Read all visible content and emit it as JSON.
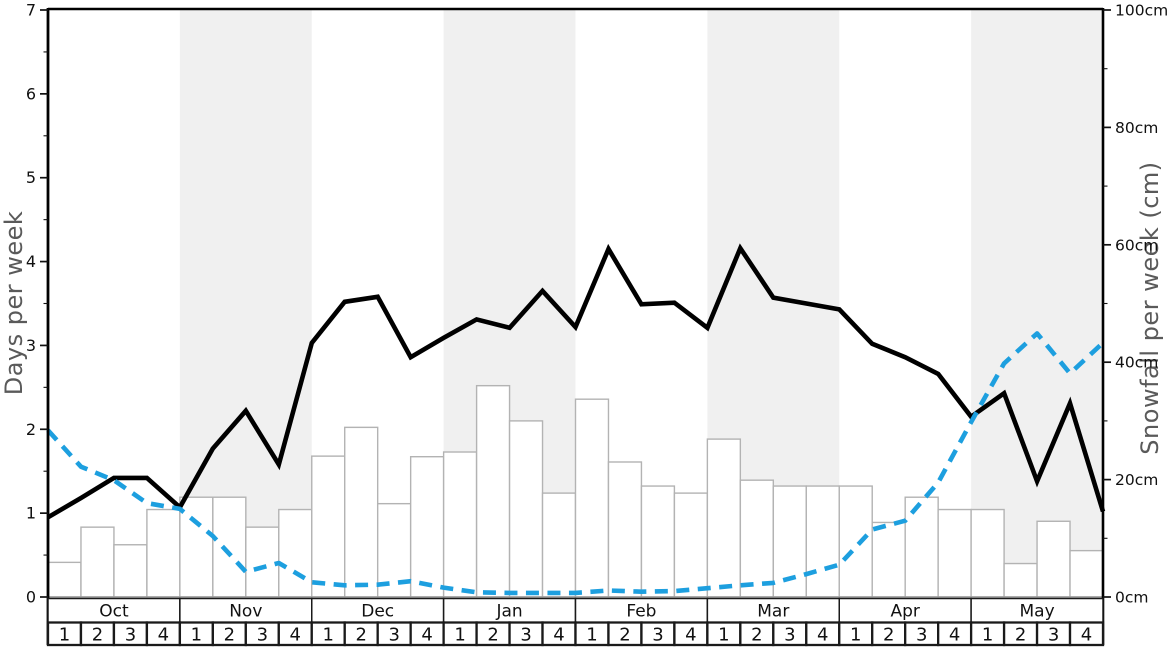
{
  "chart_data": {
    "type": "bar+line",
    "title": "",
    "left_axis": {
      "label": "Days per week",
      "range": [
        0,
        7
      ],
      "ticks": [
        "0",
        "1",
        "2",
        "3",
        "4",
        "5",
        "6",
        "7"
      ],
      "minor_tick_step": 0.5
    },
    "right_axis": {
      "label": "Snowfall per week (cm)",
      "range": [
        0,
        100
      ],
      "tick_values": [
        0,
        20,
        40,
        60,
        80,
        100
      ],
      "tick_labels": [
        "0cm",
        "20cm",
        "40cm",
        "60cm",
        "80cm",
        "100cm"
      ],
      "minor_tick_step": 10
    },
    "x": {
      "months": [
        "Oct",
        "Nov",
        "Dec",
        "Jan",
        "Feb",
        "Mar",
        "Apr",
        "May"
      ],
      "shaded_month_indices": [
        1,
        3,
        5,
        7
      ],
      "weeks_per_month": [
        "1",
        "2",
        "3",
        "4"
      ]
    },
    "series": [
      {
        "name": "snowfall-bars",
        "type": "bar",
        "axis": "right",
        "unit": "cm",
        "values": [
          5.9,
          11.9,
          8.9,
          14.9,
          17.0,
          17.0,
          11.9,
          14.9,
          24.0,
          28.9,
          15.9,
          23.9,
          24.7,
          36.0,
          30.0,
          17.7,
          33.7,
          23.0,
          18.9,
          17.7,
          26.9,
          19.9,
          18.9,
          18.9,
          18.9,
          12.7,
          17.0,
          14.9,
          14.9,
          5.7,
          12.9,
          7.9
        ]
      },
      {
        "name": "snow-days-line",
        "type": "line",
        "style": "solid",
        "axis": "left",
        "unit": "days",
        "values": [
          0.95,
          1.18,
          1.42,
          1.42,
          1.07,
          1.77,
          2.22,
          1.58,
          3.03,
          3.52,
          3.58,
          2.86,
          3.09,
          3.31,
          3.21,
          3.65,
          3.22,
          4.15,
          3.49,
          3.51,
          3.21,
          4.16,
          3.57,
          3.5,
          3.43,
          3.02,
          2.86,
          2.66,
          2.15,
          2.43,
          1.38,
          2.31,
          1.02
        ]
      },
      {
        "name": "snowfall-dashed-line",
        "type": "line",
        "style": "dashed",
        "axis": "right",
        "unit": "cm",
        "values": [
          28.4,
          22.2,
          19.9,
          16.0,
          15.0,
          10.4,
          4.3,
          5.8,
          2.5,
          2.0,
          2.1,
          2.7,
          1.6,
          0.8,
          0.7,
          0.7,
          0.7,
          1.1,
          0.9,
          1.0,
          1.5,
          2.0,
          2.4,
          3.9,
          5.5,
          11.5,
          13.0,
          19.5,
          29.8,
          39.8,
          44.9,
          38.1,
          43.3
        ]
      }
    ],
    "colors": {
      "band": "#f0f0f0",
      "bar_fill": "#ffffff",
      "bar_border": "#b3b3b3",
      "line_black": "#000000",
      "line_blue": "#1d9fdf",
      "spine": "#000000",
      "baseline": "#999999",
      "tick_text": "#111111",
      "axis_title": "#5a5a5a",
      "table_border": "#1a1a1a"
    }
  }
}
